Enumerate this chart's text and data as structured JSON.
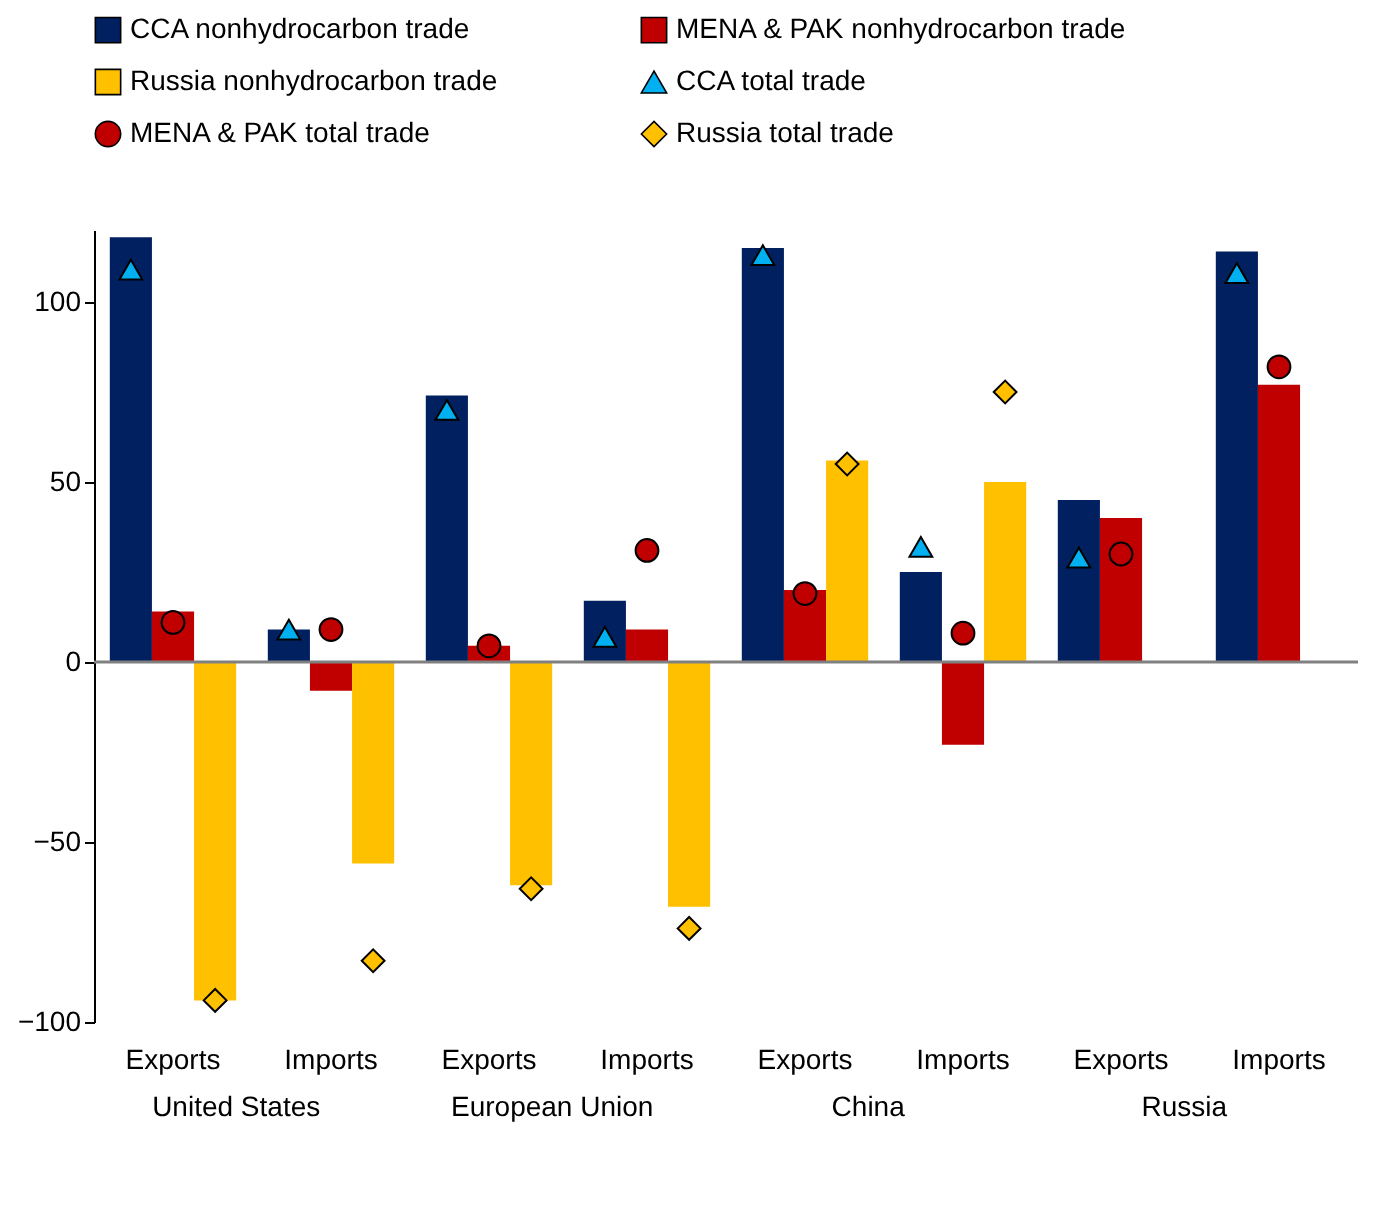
{
  "chart_data": {
    "type": "bar",
    "categories": [
      "Exports",
      "Imports",
      "Exports",
      "Imports",
      "Exports",
      "Imports",
      "Exports",
      "Imports"
    ],
    "series": [
      {
        "name": "CCA nonhydrocarbon trade",
        "color": "#002060",
        "values": [
          118,
          9,
          74,
          17,
          115,
          25,
          45,
          114
        ]
      },
      {
        "name": "MENA & PAK nonhydrocarbon trade",
        "color": "#c00000",
        "values": [
          14,
          -8,
          4.5,
          9,
          20,
          -23,
          40,
          77
        ]
      },
      {
        "name": "Russia nonhydrocarbon trade",
        "color": "#ffc000",
        "values": [
          -94,
          -56,
          -62,
          -68,
          56,
          50,
          null,
          null
        ]
      },
      {
        "name": "CCA total trade",
        "type": "scatter",
        "marker": "triangle",
        "color": "#00b0f0",
        "values": [
          109,
          9,
          70,
          7,
          113,
          32,
          29,
          108
        ]
      },
      {
        "name": "MENA & PAK total trade",
        "type": "scatter",
        "marker": "circle",
        "color": "#c00000",
        "values": [
          11,
          9,
          4.5,
          31,
          19,
          8,
          30,
          82
        ]
      },
      {
        "name": "Russia total trade",
        "type": "scatter",
        "marker": "diamond",
        "color": "#ffc000",
        "values": [
          -94,
          -83,
          -63,
          -74,
          55,
          75,
          null,
          null
        ]
      }
    ],
    "annotations": [
      "United States",
      "European Union",
      "China",
      "Russia"
    ],
    "ref_lines": [
      {
        "axis": "y",
        "value": 0,
        "color": "#808080"
      }
    ],
    "ylim": [
      -100,
      120
    ],
    "yticks": [
      -100,
      -50,
      0,
      50,
      100
    ],
    "grid": false,
    "legend": "top"
  }
}
